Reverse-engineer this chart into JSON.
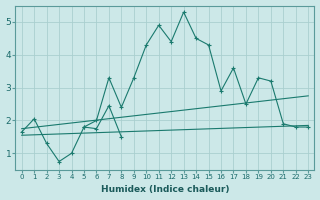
{
  "xlabel": "Humidex (Indice chaleur)",
  "ylabel": "",
  "background_color": "#cce8e8",
  "grid_color": "#aacfcf",
  "line_color": "#1a7a6e",
  "xlim": [
    -0.5,
    23.5
  ],
  "ylim": [
    0.5,
    5.5
  ],
  "xticks": [
    0,
    1,
    2,
    3,
    4,
    5,
    6,
    7,
    8,
    9,
    10,
    11,
    12,
    13,
    14,
    15,
    16,
    17,
    18,
    19,
    20,
    21,
    22,
    23
  ],
  "yticks": [
    1,
    2,
    3,
    4,
    5
  ],
  "series1_x": [
    0,
    1,
    2,
    3,
    4,
    5,
    6,
    7,
    8,
    9,
    10,
    11,
    12,
    13,
    14,
    15,
    16,
    17,
    18,
    19,
    20,
    21,
    22,
    23
  ],
  "series1_y": [
    1.65,
    2.05,
    1.3,
    0.75,
    1.0,
    1.8,
    2.0,
    3.3,
    2.4,
    3.3,
    4.3,
    4.9,
    4.4,
    5.3,
    4.5,
    4.3,
    2.9,
    3.6,
    2.5,
    3.3,
    3.2,
    1.9,
    1.8,
    1.8
  ],
  "series2_x": [
    0,
    23
  ],
  "series2_y": [
    1.55,
    1.85
  ],
  "series3_x": [
    0,
    23
  ],
  "series3_y": [
    1.75,
    2.75
  ],
  "series4_x": [
    5,
    6,
    7,
    8
  ],
  "series4_y": [
    1.8,
    1.75,
    2.45,
    1.5
  ]
}
